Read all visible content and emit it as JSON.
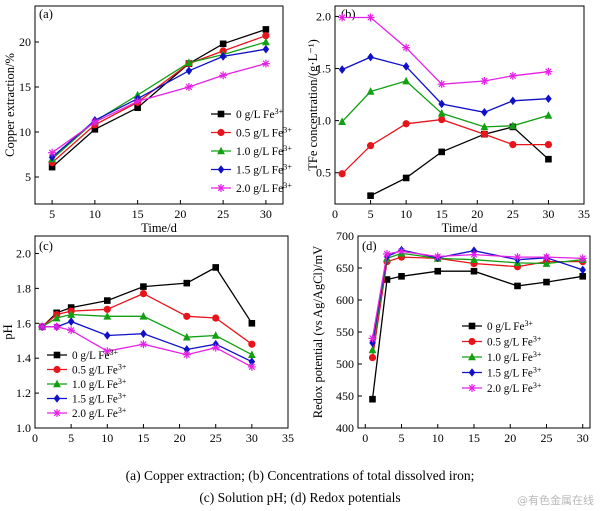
{
  "caption": {
    "line1": "(a) Copper extraction; (b) Concentrations of total dissolved iron;",
    "line2": "(c) Solution pH; (d) Redox potentials"
  },
  "watermark": "@有色金属在线",
  "chart_data": [
    {
      "type": "line",
      "panel": "(a)",
      "xlabel": "Time/d",
      "ylabel": "Copper extraction/%",
      "xlim": [
        3,
        32
      ],
      "ylim": [
        2,
        24
      ],
      "xticks": [
        5,
        10,
        15,
        20,
        25,
        30
      ],
      "yticks": [
        5,
        10,
        15,
        20
      ],
      "legend_position": "lower-right",
      "x": [
        5,
        10,
        15,
        21,
        25,
        30
      ],
      "series": [
        {
          "name": "0 g/L Fe3+",
          "color": "#000000",
          "marker": "square",
          "values": [
            6.1,
            10.3,
            12.7,
            17.6,
            19.8,
            21.4
          ]
        },
        {
          "name": "0.5 g/L Fe3+",
          "color": "#e8141c",
          "marker": "circle",
          "values": [
            6.6,
            10.8,
            13.3,
            17.6,
            19.0,
            20.7
          ]
        },
        {
          "name": "1.0 g/L Fe3+",
          "color": "#12a012",
          "marker": "triangle-up",
          "values": [
            7.0,
            11.2,
            14.1,
            17.7,
            18.6,
            20.0
          ]
        },
        {
          "name": "1.5 g/L Fe3+",
          "color": "#1010c8",
          "marker": "diamond",
          "values": [
            7.2,
            11.3,
            13.7,
            16.8,
            18.4,
            19.2
          ]
        },
        {
          "name": "2.0 g/L Fe3+",
          "color": "#e621e6",
          "marker": "star",
          "values": [
            7.7,
            11.1,
            13.4,
            15.0,
            16.3,
            17.6
          ]
        }
      ]
    },
    {
      "type": "line",
      "panel": "(b)",
      "xlabel": "Time/d",
      "ylabel": "TFe concentration/(g·L⁻¹)",
      "xlim": [
        0,
        35
      ],
      "ylim": [
        0.2,
        2.1
      ],
      "xticks": [
        0,
        5,
        10,
        15,
        20,
        25,
        30,
        35
      ],
      "yticks": [
        0.5,
        1.0,
        1.5,
        2.0
      ],
      "legend_position": "top-right",
      "series": [
        {
          "name": "0 g/L Fe3+",
          "color": "#000000",
          "marker": "square",
          "x": [
            5,
            10,
            15,
            21,
            25,
            30
          ],
          "values": [
            0.28,
            0.45,
            0.7,
            0.87,
            0.94,
            0.63
          ]
        },
        {
          "name": "0.5 g/L Fe3+",
          "color": "#e8141c",
          "marker": "circle",
          "x": [
            1,
            5,
            10,
            15,
            21,
            25,
            30
          ],
          "values": [
            0.49,
            0.76,
            0.97,
            1.01,
            0.87,
            0.77,
            0.77
          ]
        },
        {
          "name": "1.0 g/L Fe3+",
          "color": "#12a012",
          "marker": "triangle-up",
          "x": [
            1,
            5,
            10,
            15,
            21,
            25,
            30
          ],
          "values": [
            0.99,
            1.28,
            1.38,
            1.07,
            0.94,
            0.95,
            1.05
          ]
        },
        {
          "name": "1.5 g/L Fe3+",
          "color": "#1010c8",
          "marker": "diamond",
          "x": [
            1,
            5,
            10,
            15,
            21,
            25,
            30
          ],
          "values": [
            1.49,
            1.61,
            1.52,
            1.16,
            1.08,
            1.19,
            1.21
          ]
        },
        {
          "name": "2.0 g/L Fe3+",
          "color": "#e621e6",
          "marker": "star",
          "x": [
            1,
            5,
            10,
            15,
            21,
            25,
            30
          ],
          "values": [
            1.99,
            1.99,
            1.7,
            1.35,
            1.38,
            1.43,
            1.47
          ]
        }
      ]
    },
    {
      "type": "line",
      "panel": "(c)",
      "xlabel": "",
      "ylabel": "pH",
      "xlim": [
        0,
        35
      ],
      "ylim": [
        1.0,
        2.1
      ],
      "xticks": [
        0,
        5,
        10,
        15,
        20,
        25,
        30,
        35
      ],
      "yticks": [
        1.0,
        1.2,
        1.4,
        1.6,
        1.8,
        2.0
      ],
      "legend_position": "lower-left",
      "x": [
        1,
        3,
        5,
        10,
        15,
        21,
        25,
        30
      ],
      "series": [
        {
          "name": "0 g/L Fe3+",
          "color": "#000000",
          "marker": "square",
          "values": [
            1.58,
            1.66,
            1.69,
            1.73,
            1.81,
            1.83,
            1.92,
            1.6
          ]
        },
        {
          "name": "0.5 g/L Fe3+",
          "color": "#e8141c",
          "marker": "circle",
          "values": [
            1.58,
            1.65,
            1.67,
            1.68,
            1.77,
            1.64,
            1.63,
            1.48
          ]
        },
        {
          "name": "1.0 g/L Fe3+",
          "color": "#12a012",
          "marker": "triangle-up",
          "values": [
            1.58,
            1.63,
            1.65,
            1.64,
            1.64,
            1.52,
            1.53,
            1.42
          ]
        },
        {
          "name": "1.5 g/L Fe3+",
          "color": "#1010c8",
          "marker": "diamond",
          "values": [
            1.58,
            1.58,
            1.61,
            1.53,
            1.54,
            1.45,
            1.48,
            1.38
          ]
        },
        {
          "name": "2.0 g/L Fe3+",
          "color": "#e621e6",
          "marker": "star",
          "values": [
            1.58,
            1.58,
            1.56,
            1.44,
            1.48,
            1.42,
            1.46,
            1.35
          ]
        }
      ]
    },
    {
      "type": "line",
      "panel": "(d)",
      "xlabel": "",
      "ylabel": "Redox potential (vs Ag/AgCl)/mV",
      "xlim": [
        -1,
        31
      ],
      "ylim": [
        400,
        700
      ],
      "xticks": [
        0,
        5,
        10,
        15,
        20,
        25,
        30
      ],
      "yticks": [
        400,
        450,
        500,
        550,
        600,
        650,
        700
      ],
      "legend_position": "lower-right",
      "x": [
        1,
        3,
        5,
        10,
        15,
        21,
        25,
        30
      ],
      "series": [
        {
          "name": "0 g/L Fe3+",
          "color": "#000000",
          "marker": "square",
          "values": [
            445,
            632,
            637,
            645,
            645,
            622,
            628,
            637
          ]
        },
        {
          "name": "0.5 g/L Fe3+",
          "color": "#e8141c",
          "marker": "circle",
          "values": [
            510,
            660,
            667,
            665,
            657,
            652,
            660,
            660
          ]
        },
        {
          "name": "1.0 g/L Fe3+",
          "color": "#12a012",
          "marker": "triangle-up",
          "values": [
            522,
            665,
            673,
            665,
            663,
            658,
            657,
            663
          ]
        },
        {
          "name": "1.5 g/L Fe3+",
          "color": "#1010c8",
          "marker": "diamond",
          "values": [
            533,
            668,
            678,
            666,
            677,
            663,
            666,
            647
          ]
        },
        {
          "name": "2.0 g/L Fe3+",
          "color": "#e621e6",
          "marker": "star",
          "values": [
            540,
            672,
            676,
            668,
            671,
            667,
            667,
            665
          ]
        }
      ]
    }
  ]
}
